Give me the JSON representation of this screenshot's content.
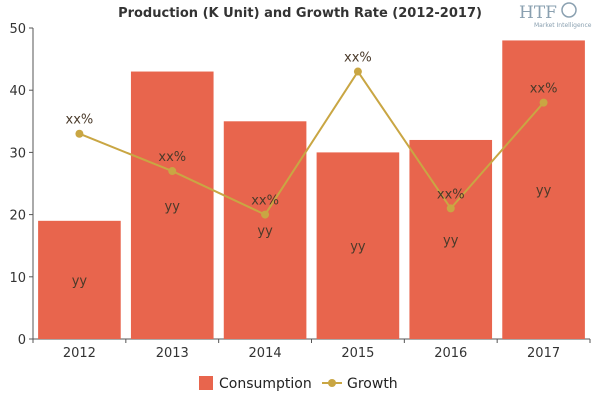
{
  "title": "Production (K Unit) and Growth Rate (2012-2017)",
  "logo": {
    "text": "HTF",
    "subtext": "Market Intelligence"
  },
  "colors": {
    "bar": "#e8654d",
    "line": "#c9a643",
    "axis": "#555555",
    "grid": "#dddddd"
  },
  "chart_data": {
    "type": "bar",
    "title": "Production (K Unit) and Growth Rate (2012-2017)",
    "categories": [
      "2012",
      "2013",
      "2014",
      "2015",
      "2016",
      "2017"
    ],
    "ylim": [
      0,
      50
    ],
    "yticks": [
      0,
      10,
      20,
      30,
      40,
      50
    ],
    "grid": false,
    "legend_position": "bottom",
    "series": [
      {
        "name": "Consumption",
        "type": "bar",
        "values": [
          19,
          43,
          35,
          30,
          32,
          48
        ],
        "labels": [
          "yy",
          "yy",
          "yy",
          "yy",
          "yy",
          "yy"
        ]
      },
      {
        "name": "Growth",
        "type": "line",
        "values": [
          33,
          27,
          20,
          43,
          21,
          38
        ],
        "labels": [
          "xx%",
          "xx%",
          "xx%",
          "xx%",
          "xx%",
          "xx%"
        ]
      }
    ]
  }
}
